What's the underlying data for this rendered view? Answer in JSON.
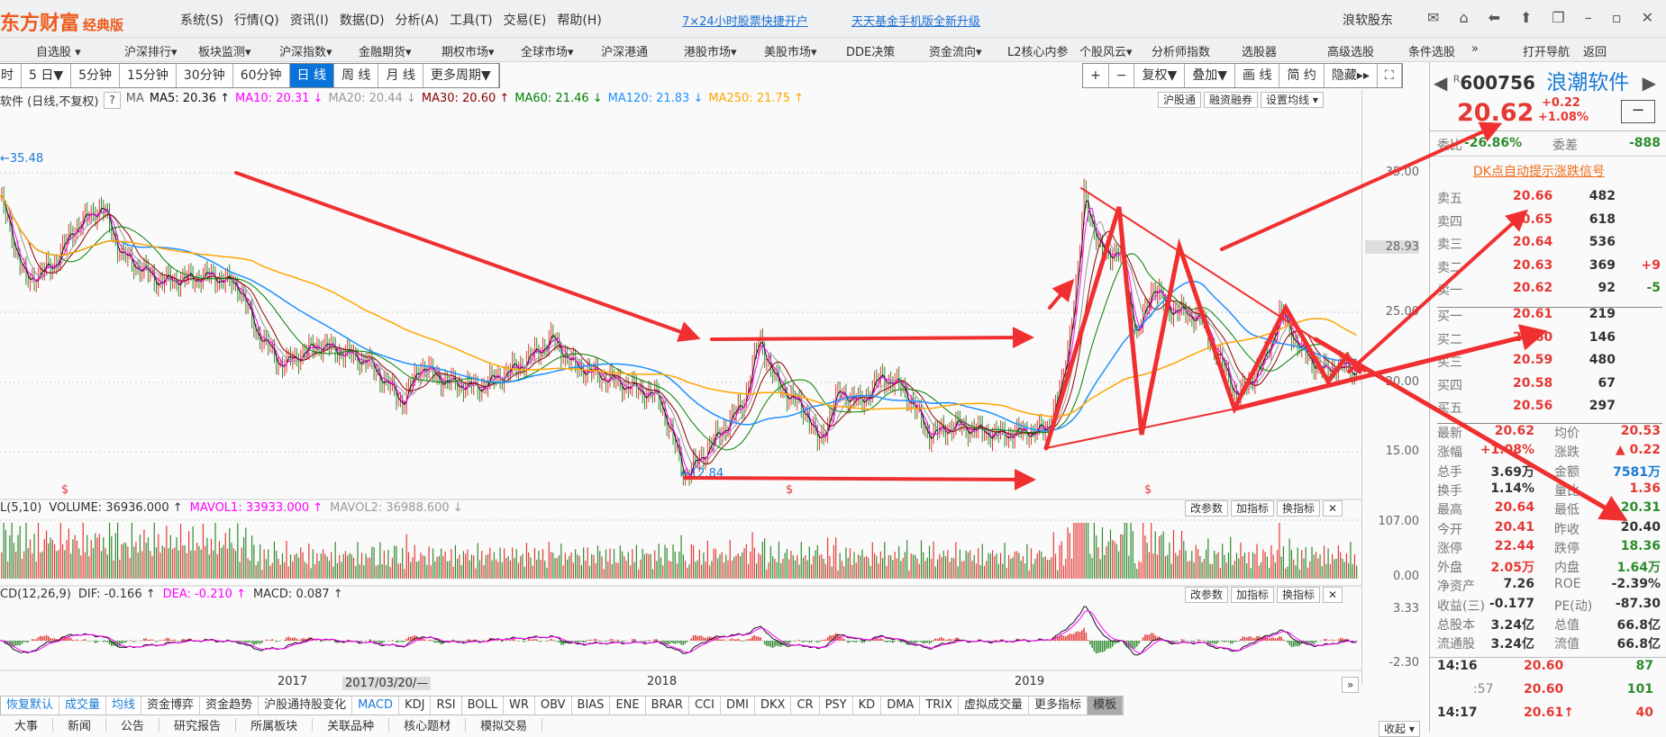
{
  "app": {
    "logo": "东方财富",
    "edition": "经典版"
  },
  "menu": [
    "系统(S)",
    "行情(Q)",
    "资讯(I)",
    "数据(D)",
    "分析(A)",
    "工具(T)",
    "交易(E)",
    "帮助(H)"
  ],
  "promo_links": [
    "7×24小时股票快捷开户",
    "天天基金手机版全新升级"
  ],
  "user": "浪软股东",
  "window_icons": [
    "mail-icon",
    "home-icon",
    "back-icon",
    "up-icon",
    "restore-icon",
    "minimize-icon",
    "maximize-icon",
    "close-icon"
  ],
  "nav": [
    "自选股 ▾",
    "沪深排行▾",
    "板块监测▾",
    "沪深指数▾",
    "金融期货▾",
    "期权市场▾",
    "全球市场▾",
    "沪深港通",
    "港股市场▾",
    "美股市场▾",
    "DDE决策",
    "资金流向▾",
    "L2核心内参",
    "个股风云▾",
    "分析师指数",
    "选股器",
    "高级选股",
    "条件选股",
    "»",
    "打开导航",
    "返回"
  ],
  "periods": [
    "时",
    "5 日▼",
    "5分钟",
    "15分钟",
    "30分钟",
    "60分钟",
    "日 线",
    "周 线",
    "月 线",
    "更多周期▼"
  ],
  "active_period": "日 线",
  "chart_tools": [
    "+",
    "−",
    "复权▼",
    "叠加▼",
    "画 线",
    "简 约",
    "隐藏▸▸",
    "⛶"
  ],
  "ma_legend": {
    "title": "软件 (日线,不复权)",
    "help": "?",
    "ma": "MA",
    "items": [
      {
        "text": "MA5: 20.36 ↑",
        "color": "#111111"
      },
      {
        "text": "MA10: 20.31 ↓",
        "color": "#ff00ff"
      },
      {
        "text": "MA20: 20.44 ↓",
        "color": "#999999"
      },
      {
        "text": "MA30: 20.60 ↑",
        "color": "#8b0000"
      },
      {
        "text": "MA60: 21.46 ↓",
        "color": "#008000"
      },
      {
        "text": "MA120: 21.83 ↓",
        "color": "#1e90ff"
      },
      {
        "text": "MA250: 21.75 ↑",
        "color": "#ffa500"
      }
    ],
    "buttons": [
      "沪股通",
      "融资融券",
      "设置均线 ▾"
    ]
  },
  "chart_data": {
    "type": "line",
    "x_tick_labels": [
      "2017",
      "2018",
      "2019"
    ],
    "cursor_date": "2017/03/20/—",
    "price_axis": {
      "ylim": [
        15,
        35
      ],
      "ticks": [
        "35.00",
        "25.00",
        "20.00",
        "15.00"
      ],
      "highlight": "28.93"
    },
    "annotations": {
      "high": "←35.48",
      "low": "←12.84",
      "signal": "$"
    },
    "close": [
      [
        "2016-03-25",
        33.3
      ],
      [
        "2016-04-20",
        27.2
      ],
      [
        "2016-05-17",
        28.4
      ],
      [
        "2016-06-06",
        31.0
      ],
      [
        "2016-07-03",
        32.6
      ],
      [
        "2016-07-23",
        29.1
      ],
      [
        "2016-08-29",
        27.2
      ],
      [
        "2016-10-20",
        27.6
      ],
      [
        "2016-11-15",
        26.9
      ],
      [
        "2016-12-01",
        23.8
      ],
      [
        "2016-12-27",
        21.2
      ],
      [
        "2017-02-02",
        22.7
      ],
      [
        "2017-03-21",
        21.5
      ],
      [
        "2017-04-26",
        18.5
      ],
      [
        "2017-05-12",
        21.2
      ],
      [
        "2017-06-07",
        20.0
      ],
      [
        "2017-07-08",
        19.6
      ],
      [
        "2017-08-19",
        21.2
      ],
      [
        "2017-09-19",
        23.1
      ],
      [
        "2017-10-10",
        21.2
      ],
      [
        "2017-11-21",
        20.0
      ],
      [
        "2018-01-02",
        18.9
      ],
      [
        "2018-01-28",
        13.2
      ],
      [
        "2018-03-06",
        16.6
      ],
      [
        "2018-03-26",
        18.5
      ],
      [
        "2018-04-11",
        23.1
      ],
      [
        "2018-04-27",
        20.0
      ],
      [
        "2018-05-28",
        17.7
      ],
      [
        "2018-06-08",
        15.5
      ],
      [
        "2018-06-28",
        19.3
      ],
      [
        "2018-07-19",
        18.5
      ],
      [
        "2018-08-09",
        20.4
      ],
      [
        "2018-08-30",
        19.6
      ],
      [
        "2018-09-25",
        16.2
      ],
      [
        "2018-10-21",
        16.9
      ],
      [
        "2018-12-02",
        16.2
      ],
      [
        "2019-01-18",
        16.6
      ],
      [
        "2019-02-03",
        20.0
      ],
      [
        "2019-02-19",
        28.4
      ],
      [
        "2019-02-24",
        33.6
      ],
      [
        "2019-03-11",
        29.5
      ],
      [
        "2019-04-01",
        29.1
      ],
      [
        "2019-04-17",
        23.1
      ],
      [
        "2019-05-02",
        26.9
      ],
      [
        "2019-05-18",
        25.3
      ],
      [
        "2019-06-18",
        24.6
      ],
      [
        "2019-07-25",
        18.9
      ],
      [
        "2019-08-20",
        21.5
      ],
      [
        "2019-09-05",
        25.0
      ],
      [
        "2019-09-25",
        22.3
      ],
      [
        "2019-10-16",
        20.8
      ],
      [
        "2019-11-06",
        21.2
      ],
      [
        "2019-11-20",
        20.62
      ]
    ],
    "ma_colors": {
      "MA5": "#111111",
      "MA10": "#ff00ff",
      "MA20": "#999999",
      "MA30": "#8b0000",
      "MA60": "#008000",
      "MA120": "#1e90ff",
      "MA250": "#ffa500"
    },
    "volume": {
      "header_prefix": "L(5,10)",
      "volume": "VOLUME: 36936.000 ↑",
      "mavol1": "MAVOL1: 33933.000 ↑",
      "mavol2": "MAVOL2: 36988.600 ↓",
      "ticks": [
        "107.00",
        "0.00"
      ],
      "up_color": "#e53935",
      "down_color": "#2e8b2e"
    },
    "macd": {
      "header_prefix": "CD(12,26,9)",
      "dif": "DIF: -0.166 ↑",
      "dea": "DEA: -0.210 ↑",
      "macd": "MACD: 0.087 ↑",
      "ticks": [
        "3.33",
        "-2.30"
      ]
    }
  },
  "pane_buttons": [
    "改参数",
    "加指标",
    "换指标",
    "✕"
  ],
  "quote": {
    "code": "600756",
    "name": "浪潮软件",
    "badge": "R",
    "price": "20.62",
    "change": "+0.22",
    "pct": "+1.08%",
    "wb_label": "委比",
    "wb": "-26.86%",
    "wc_label": "委差",
    "wc": "-888",
    "dk_link": "DK点自动提示涨跌信号",
    "sell": [
      [
        "卖五",
        "20.66",
        "482",
        ""
      ],
      [
        "卖四",
        "20.65",
        "618",
        ""
      ],
      [
        "卖三",
        "20.64",
        "536",
        ""
      ],
      [
        "卖二",
        "20.63",
        "369",
        "+9"
      ],
      [
        "卖一",
        "20.62",
        "92",
        "-5"
      ]
    ],
    "buy": [
      [
        "买一",
        "20.61",
        "219"
      ],
      [
        "买二",
        "20.60",
        "146"
      ],
      [
        "买三",
        "20.59",
        "480"
      ],
      [
        "买四",
        "20.58",
        "67"
      ],
      [
        "买五",
        "20.56",
        "297"
      ]
    ],
    "stats": [
      [
        "最新",
        "20.62",
        "red",
        "均价",
        "20.53",
        "red"
      ],
      [
        "涨幅",
        "+1.08%",
        "red",
        "涨跌",
        "▲ 0.22",
        "red"
      ],
      [
        "总手",
        "3.69万",
        "dk",
        "金额",
        "7581万",
        "blu"
      ],
      [
        "换手",
        "1.14%",
        "dk",
        "量比",
        "1.36",
        "red"
      ],
      [
        "最高",
        "20.64",
        "red",
        "最低",
        "20.31",
        "grn"
      ],
      [
        "今开",
        "20.41",
        "red",
        "昨收",
        "20.40",
        "dk"
      ],
      [
        "涨停",
        "22.44",
        "red",
        "跌停",
        "18.36",
        "grn"
      ],
      [
        "外盘",
        "2.05万",
        "red",
        "内盘",
        "1.64万",
        "grn"
      ],
      [
        "净资产",
        "7.26",
        "dk",
        "ROE",
        "-2.39%",
        "dk"
      ],
      [
        "收益(三)",
        "-0.177",
        "dk",
        "PE(动)",
        "-87.30",
        "dk"
      ],
      [
        "总股本",
        "3.24亿",
        "dk",
        "总值",
        "66.8亿",
        "dk"
      ],
      [
        "流通股",
        "3.24亿",
        "dk",
        "流值",
        "66.8亿",
        "dk"
      ]
    ],
    "ticks": [
      [
        "14:16",
        "20.60",
        "87",
        "grn"
      ],
      [
        ":57",
        "20.60",
        "101",
        "grn"
      ],
      [
        "14:17",
        "20.61↑",
        "40",
        "red"
      ]
    ]
  },
  "indicator_tabs": [
    "恢复默认",
    "成交量",
    "均线",
    "资金博弈",
    "资金趋势",
    "沪股通持股变化",
    "MACD",
    "KDJ",
    "RSI",
    "BOLL",
    "WR",
    "OBV",
    "BIAS",
    "ENE",
    "BRAR",
    "CCI",
    "DMI",
    "DKX",
    "CR",
    "PSY",
    "KD",
    "DMA",
    "TRIX",
    "虚拟成交量",
    "更多指标",
    "模板"
  ],
  "bottom_tabs": [
    "大事",
    "新闻",
    "公告",
    "研究报告",
    "所属板块",
    "关联品种",
    "核心题材",
    "模拟交易"
  ],
  "collapse": "收起 ▾",
  "expand": "»"
}
